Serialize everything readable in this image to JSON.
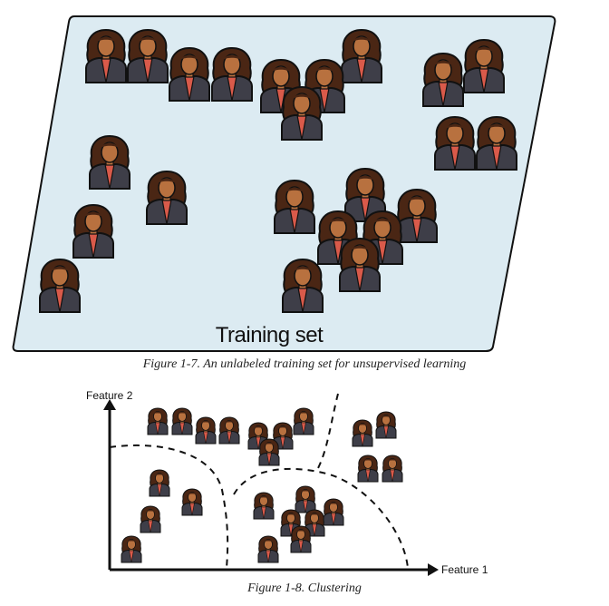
{
  "figure7": {
    "set_label": "Training set",
    "caption": "Figure 1-7. An unlabeled training set for unsupervised learning",
    "panel_fill": "#dcebf2",
    "person_count": 24
  },
  "figure8": {
    "caption": "Figure 1-8. Clustering",
    "y_axis_label": "Feature 2",
    "x_axis_label": "Feature 1",
    "person_count": 24
  },
  "colors": {
    "skin": "#b8713f",
    "hair": "#4a2614",
    "shirt": "#3e3e48",
    "collar": "#d95a4a",
    "outline": "#111111"
  }
}
